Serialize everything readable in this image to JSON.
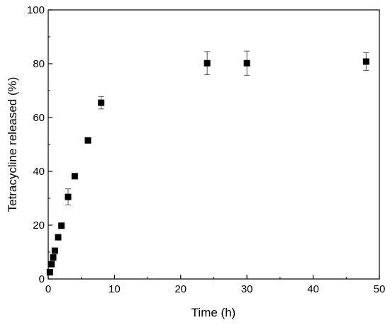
{
  "chart_data": {
    "type": "scatter",
    "title": "",
    "xlabel": "Time (h)",
    "ylabel": "Tetracycline released (%)",
    "xlim": [
      0,
      50
    ],
    "ylim": [
      0,
      100
    ],
    "xticks": [
      0,
      10,
      20,
      30,
      40,
      50
    ],
    "yticks": [
      0,
      20,
      40,
      60,
      80,
      100
    ],
    "grid": false,
    "legend": "none",
    "marker": "filled-square",
    "color": "#000000",
    "points": [
      {
        "x": 0.25,
        "y": 2.5,
        "err": 0
      },
      {
        "x": 0.5,
        "y": 5.5,
        "err": 0.5
      },
      {
        "x": 0.75,
        "y": 8.0,
        "err": 0.5
      },
      {
        "x": 1.0,
        "y": 10.5,
        "err": 0.5
      },
      {
        "x": 1.5,
        "y": 15.5,
        "err": 0.5
      },
      {
        "x": 2.0,
        "y": 19.8,
        "err": 0.8
      },
      {
        "x": 3.0,
        "y": 30.5,
        "err": 3.0
      },
      {
        "x": 4.0,
        "y": 38.2,
        "err": 0.5
      },
      {
        "x": 6.0,
        "y": 51.5,
        "err": 0.5
      },
      {
        "x": 8.0,
        "y": 65.5,
        "err": 2.3
      },
      {
        "x": 24.0,
        "y": 80.2,
        "err": 4.3
      },
      {
        "x": 30.0,
        "y": 80.2,
        "err": 4.5
      },
      {
        "x": 48.0,
        "y": 80.8,
        "err": 3.3
      }
    ]
  }
}
